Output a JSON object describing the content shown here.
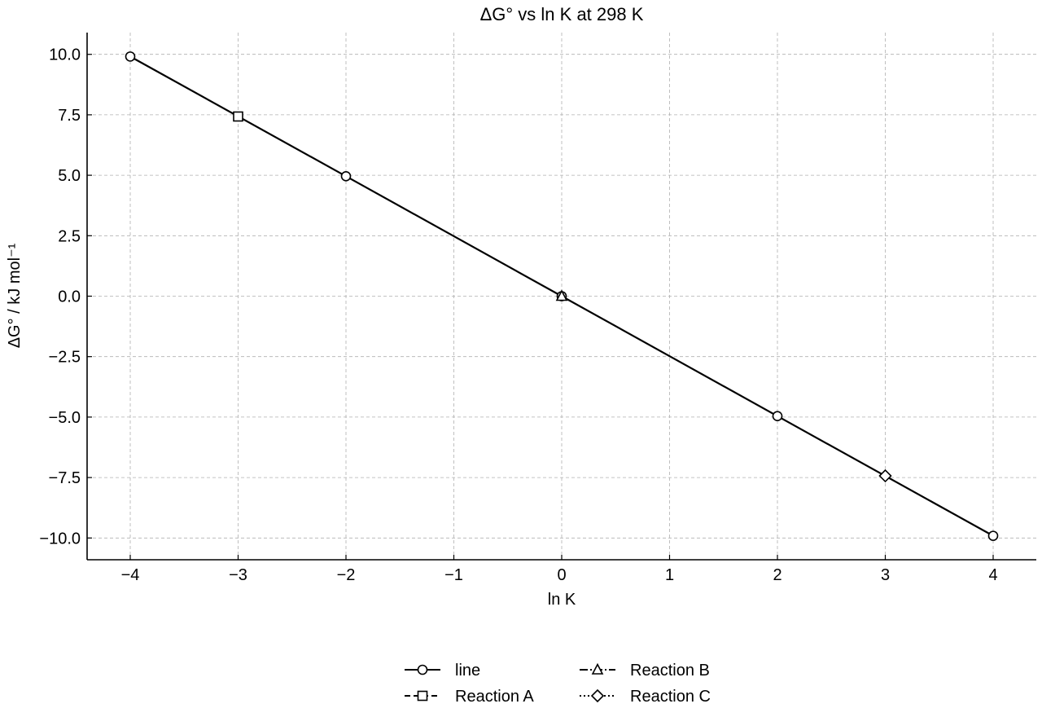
{
  "chart_data": {
    "type": "line",
    "title": "ΔG° vs ln K at 298 K",
    "xlabel": "ln K",
    "ylabel": "ΔG° / kJ mol⁻¹",
    "xlim": [
      -4.4,
      4.4
    ],
    "ylim": [
      -10.9,
      10.9
    ],
    "xticks": [
      {
        "value": -4,
        "label": "−4"
      },
      {
        "value": -3,
        "label": "−3"
      },
      {
        "value": -2,
        "label": "−2"
      },
      {
        "value": -1,
        "label": "−1"
      },
      {
        "value": 0,
        "label": "0"
      },
      {
        "value": 1,
        "label": "1"
      },
      {
        "value": 2,
        "label": "2"
      },
      {
        "value": 3,
        "label": "3"
      },
      {
        "value": 4,
        "label": "4"
      }
    ],
    "yticks": [
      {
        "value": 10,
        "label": "10.0"
      },
      {
        "value": 7.5,
        "label": "7.5"
      },
      {
        "value": 5,
        "label": "5.0"
      },
      {
        "value": 2.5,
        "label": "2.5"
      },
      {
        "value": 0,
        "label": "0.0"
      },
      {
        "value": -2.5,
        "label": "−2.5"
      },
      {
        "value": -5,
        "label": "−5.0"
      },
      {
        "value": -7.5,
        "label": "−7.5"
      },
      {
        "value": -10,
        "label": "−10.0"
      }
    ],
    "grid": true,
    "legend_position": "bottom-center",
    "series": [
      {
        "name": "line",
        "marker": "circle",
        "line_style": "solid",
        "color": "#000000",
        "x": [
          -4,
          -2,
          0,
          2,
          4
        ],
        "y": [
          9.91,
          4.96,
          0,
          -4.96,
          -9.91
        ]
      },
      {
        "name": "Reaction A",
        "marker": "square",
        "line_style": "dashed",
        "color": "#000000",
        "x": [
          -3
        ],
        "y": [
          7.43
        ]
      },
      {
        "name": "Reaction B",
        "marker": "triangle",
        "line_style": "dashdot",
        "color": "#000000",
        "x": [
          0
        ],
        "y": [
          0
        ]
      },
      {
        "name": "Reaction C",
        "marker": "diamond",
        "line_style": "dotted",
        "color": "#000000",
        "x": [
          3
        ],
        "y": [
          -7.43
        ]
      }
    ]
  }
}
